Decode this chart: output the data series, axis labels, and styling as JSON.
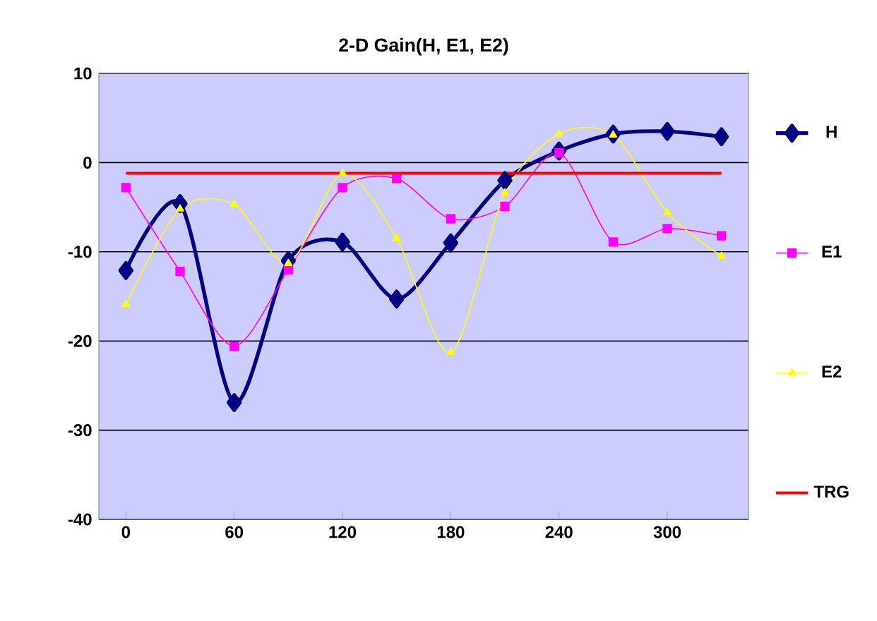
{
  "chart_data": {
    "type": "line",
    "title": "2-D Gain(H, E1, E2)",
    "x": [
      0,
      30,
      60,
      90,
      120,
      150,
      180,
      210,
      240,
      270,
      300,
      330
    ],
    "xlim": [
      -15,
      345
    ],
    "xticks": [
      0,
      60,
      120,
      180,
      240,
      300
    ],
    "ylim": [
      -40,
      10
    ],
    "yticks": [
      -40,
      -30,
      -20,
      -10,
      0,
      10
    ],
    "grid": "y",
    "legend": "right",
    "series": [
      {
        "name": "H",
        "color": "#000080",
        "marker": "diamond",
        "values": [
          -12.1,
          -4.6,
          -26.9,
          -11.0,
          -8.9,
          -15.3,
          -9.0,
          -2.0,
          1.3,
          3.2,
          3.5,
          2.9
        ]
      },
      {
        "name": "E1",
        "color": "#ff00ff",
        "marker": "square",
        "values": [
          -2.8,
          -12.2,
          -20.6,
          -12.0,
          -2.8,
          -1.8,
          -6.3,
          -4.9,
          1.1,
          -8.9,
          -7.4,
          -8.2
        ]
      },
      {
        "name": "E2",
        "color": "#ffff00",
        "marker": "triangle",
        "values": [
          -15.9,
          -5.2,
          -4.7,
          -11.3,
          -1.2,
          -8.5,
          -21.3,
          -3.4,
          3.2,
          3.1,
          -5.6,
          -10.5
        ]
      },
      {
        "name": "TRG",
        "color": "#ff0000",
        "marker": "none",
        "values": [
          -1.2,
          -1.2,
          -1.2,
          -1.2,
          -1.2,
          -1.2,
          -1.2,
          -1.2,
          -1.2,
          -1.2,
          -1.2,
          -1.2
        ]
      }
    ]
  }
}
